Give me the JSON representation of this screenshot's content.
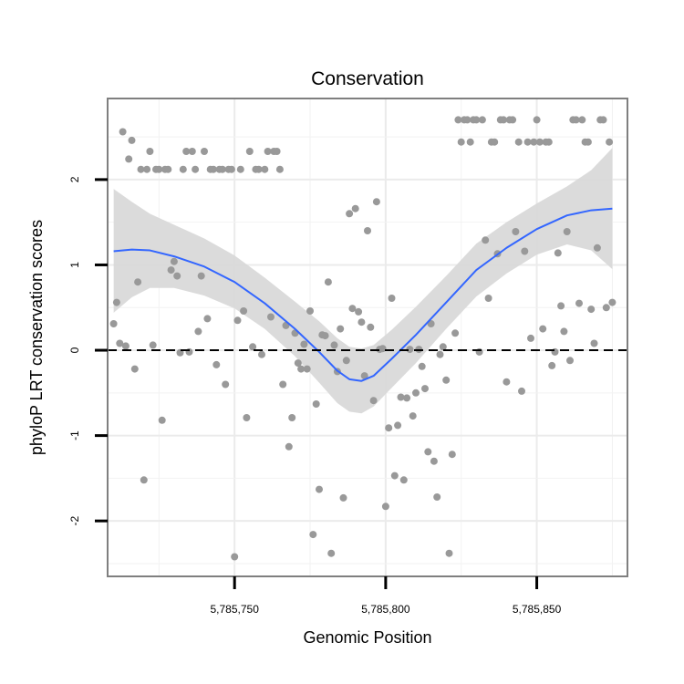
{
  "chart_data": {
    "type": "scatter",
    "title": "Conservation",
    "xlabel": "Genomic Position",
    "ylabel": "phyloP LRT conservation scores",
    "xlim": [
      5785708,
      5785880
    ],
    "ylim": [
      -2.65,
      2.95
    ],
    "x_ticks": [
      {
        "value": 5785750,
        "label": "5,785,750"
      },
      {
        "value": 5785800,
        "label": "5,785,800"
      },
      {
        "value": 5785850,
        "label": "5,785,850"
      }
    ],
    "y_ticks": [
      {
        "value": 2,
        "label": "2"
      },
      {
        "value": 1,
        "label": "1"
      },
      {
        "value": 0,
        "label": "0"
      },
      {
        "value": -1,
        "label": "-1"
      },
      {
        "value": -2,
        "label": "-2"
      }
    ],
    "reference_line": {
      "y": 0,
      "style": "dashed"
    },
    "grid": true,
    "point_color": "#999999",
    "smooth_color": "#3366ff",
    "ribbon_color": "#d9d9d9",
    "points": [
      [
        5785710,
        0.31
      ],
      [
        5785711,
        0.56
      ],
      [
        5785712,
        0.08
      ],
      [
        5785713,
        2.56
      ],
      [
        5785714,
        0.05
      ],
      [
        5785715,
        2.24
      ],
      [
        5785716,
        2.46
      ],
      [
        5785717,
        -0.22
      ],
      [
        5785718,
        0.8
      ],
      [
        5785719,
        2.12
      ],
      [
        5785720,
        -1.52
      ],
      [
        5785721,
        2.12
      ],
      [
        5785722,
        2.33
      ],
      [
        5785723,
        0.06
      ],
      [
        5785724,
        2.12
      ],
      [
        5785725,
        2.12
      ],
      [
        5785726,
        -0.82
      ],
      [
        5785727,
        2.12
      ],
      [
        5785728,
        2.12
      ],
      [
        5785729,
        0.94
      ],
      [
        5785730,
        1.04
      ],
      [
        5785731,
        0.87
      ],
      [
        5785732,
        -0.03
      ],
      [
        5785733,
        2.12
      ],
      [
        5785734,
        2.33
      ],
      [
        5785735,
        -0.02
      ],
      [
        5785736,
        2.33
      ],
      [
        5785737,
        2.12
      ],
      [
        5785738,
        0.22
      ],
      [
        5785739,
        0.87
      ],
      [
        5785740,
        2.33
      ],
      [
        5785741,
        0.37
      ],
      [
        5785742,
        2.12
      ],
      [
        5785743,
        2.12
      ],
      [
        5785744,
        -0.17
      ],
      [
        5785745,
        2.12
      ],
      [
        5785746,
        2.12
      ],
      [
        5785747,
        -0.4
      ],
      [
        5785748,
        2.12
      ],
      [
        5785749,
        2.12
      ],
      [
        5785750,
        -2.42
      ],
      [
        5785751,
        0.35
      ],
      [
        5785752,
        2.12
      ],
      [
        5785753,
        0.46
      ],
      [
        5785754,
        -0.79
      ],
      [
        5785755,
        2.33
      ],
      [
        5785756,
        0.04
      ],
      [
        5785757,
        2.12
      ],
      [
        5785758,
        2.12
      ],
      [
        5785759,
        -0.05
      ],
      [
        5785760,
        2.12
      ],
      [
        5785761,
        2.33
      ],
      [
        5785762,
        0.39
      ],
      [
        5785763,
        2.33
      ],
      [
        5785764,
        2.33
      ],
      [
        5785765,
        2.12
      ],
      [
        5785766,
        -0.4
      ],
      [
        5785767,
        0.29
      ],
      [
        5785768,
        -1.13
      ],
      [
        5785769,
        -0.79
      ],
      [
        5785770,
        0.2
      ],
      [
        5785771,
        -0.15
      ],
      [
        5785772,
        -0.22
      ],
      [
        5785773,
        0.07
      ],
      [
        5785774,
        -0.22
      ],
      [
        5785775,
        0.46
      ],
      [
        5785776,
        -2.16
      ],
      [
        5785777,
        -0.63
      ],
      [
        5785778,
        -1.63
      ],
      [
        5785779,
        0.18
      ],
      [
        5785780,
        0.17
      ],
      [
        5785781,
        0.8
      ],
      [
        5785782,
        -2.38
      ],
      [
        5785783,
        0.06
      ],
      [
        5785784,
        -0.25
      ],
      [
        5785785,
        0.25
      ],
      [
        5785786,
        -1.73
      ],
      [
        5785787,
        -0.12
      ],
      [
        5785788,
        1.6
      ],
      [
        5785789,
        0.49
      ],
      [
        5785790,
        1.66
      ],
      [
        5785791,
        0.45
      ],
      [
        5785792,
        0.33
      ],
      [
        5785793,
        -0.3
      ],
      [
        5785794,
        1.4
      ],
      [
        5785795,
        0.27
      ],
      [
        5785796,
        -0.59
      ],
      [
        5785797,
        1.74
      ],
      [
        5785798,
        0.01
      ],
      [
        5785799,
        0.02
      ],
      [
        5785800,
        -1.83
      ],
      [
        5785801,
        -0.91
      ],
      [
        5785802,
        0.61
      ],
      [
        5785803,
        -1.47
      ],
      [
        5785804,
        -0.88
      ],
      [
        5785805,
        -0.55
      ],
      [
        5785806,
        -1.52
      ],
      [
        5785807,
        -0.56
      ],
      [
        5785808,
        0.01
      ],
      [
        5785809,
        -0.77
      ],
      [
        5785810,
        -0.5
      ],
      [
        5785811,
        0.01
      ],
      [
        5785812,
        -0.19
      ],
      [
        5785813,
        -0.45
      ],
      [
        5785814,
        -1.19
      ],
      [
        5785815,
        0.31
      ],
      [
        5785816,
        -1.3
      ],
      [
        5785817,
        -1.72
      ],
      [
        5785818,
        -0.05
      ],
      [
        5785819,
        0.04
      ],
      [
        5785820,
        -0.35
      ],
      [
        5785821,
        -2.38
      ],
      [
        5785822,
        -1.22
      ],
      [
        5785823,
        0.2
      ],
      [
        5785824,
        2.7
      ],
      [
        5785825,
        2.44
      ],
      [
        5785826,
        2.7
      ],
      [
        5785827,
        2.7
      ],
      [
        5785828,
        2.44
      ],
      [
        5785829,
        2.7
      ],
      [
        5785830,
        2.7
      ],
      [
        5785831,
        -0.02
      ],
      [
        5785832,
        2.7
      ],
      [
        5785833,
        1.29
      ],
      [
        5785834,
        0.61
      ],
      [
        5785835,
        2.44
      ],
      [
        5785836,
        2.44
      ],
      [
        5785837,
        1.13
      ],
      [
        5785838,
        2.7
      ],
      [
        5785839,
        2.7
      ],
      [
        5785840,
        -0.37
      ],
      [
        5785841,
        2.7
      ],
      [
        5785842,
        2.7
      ],
      [
        5785843,
        1.39
      ],
      [
        5785844,
        2.44
      ],
      [
        5785845,
        -0.48
      ],
      [
        5785846,
        1.16
      ],
      [
        5785847,
        2.44
      ],
      [
        5785848,
        0.14
      ],
      [
        5785849,
        2.44
      ],
      [
        5785850,
        2.7
      ],
      [
        5785851,
        2.44
      ],
      [
        5785852,
        0.25
      ],
      [
        5785853,
        2.44
      ],
      [
        5785854,
        2.44
      ],
      [
        5785855,
        -0.18
      ],
      [
        5785856,
        -0.02
      ],
      [
        5785857,
        1.14
      ],
      [
        5785858,
        0.52
      ],
      [
        5785859,
        0.22
      ],
      [
        5785860,
        1.39
      ],
      [
        5785861,
        -0.12
      ],
      [
        5785862,
        2.7
      ],
      [
        5785863,
        2.7
      ],
      [
        5785864,
        0.55
      ],
      [
        5785865,
        2.7
      ],
      [
        5785866,
        2.44
      ],
      [
        5785867,
        2.44
      ],
      [
        5785868,
        0.48
      ],
      [
        5785869,
        0.08
      ],
      [
        5785870,
        1.2
      ],
      [
        5785871,
        2.7
      ],
      [
        5785872,
        2.7
      ],
      [
        5785873,
        0.5
      ],
      [
        5785874,
        2.44
      ],
      [
        5785875,
        0.56
      ]
    ],
    "smooth": [
      {
        "x": 5785710,
        "y": 1.16,
        "lo": 0.44,
        "hi": 1.89
      },
      {
        "x": 5785716,
        "y": 1.18,
        "lo": 0.62,
        "hi": 1.74
      },
      {
        "x": 5785722,
        "y": 1.17,
        "lo": 0.73,
        "hi": 1.6
      },
      {
        "x": 5785730,
        "y": 1.1,
        "lo": 0.73,
        "hi": 1.47
      },
      {
        "x": 5785740,
        "y": 0.98,
        "lo": 0.64,
        "hi": 1.31
      },
      {
        "x": 5785750,
        "y": 0.8,
        "lo": 0.49,
        "hi": 1.11
      },
      {
        "x": 5785760,
        "y": 0.55,
        "lo": 0.25,
        "hi": 0.85
      },
      {
        "x": 5785770,
        "y": 0.25,
        "lo": -0.07,
        "hi": 0.57
      },
      {
        "x": 5785778,
        "y": -0.02,
        "lo": -0.38,
        "hi": 0.34
      },
      {
        "x": 5785784,
        "y": -0.24,
        "lo": -0.62,
        "hi": 0.14
      },
      {
        "x": 5785788,
        "y": -0.34,
        "lo": -0.72,
        "hi": 0.04
      },
      {
        "x": 5785792,
        "y": -0.36,
        "lo": -0.74,
        "hi": 0.02
      },
      {
        "x": 5785796,
        "y": -0.3,
        "lo": -0.66,
        "hi": 0.06
      },
      {
        "x": 5785802,
        "y": -0.1,
        "lo": -0.44,
        "hi": 0.24
      },
      {
        "x": 5785810,
        "y": 0.18,
        "lo": -0.15,
        "hi": 0.51
      },
      {
        "x": 5785820,
        "y": 0.56,
        "lo": 0.25,
        "hi": 0.87
      },
      {
        "x": 5785830,
        "y": 0.94,
        "lo": 0.63,
        "hi": 1.25
      },
      {
        "x": 5785840,
        "y": 1.2,
        "lo": 0.9,
        "hi": 1.5
      },
      {
        "x": 5785850,
        "y": 1.42,
        "lo": 1.12,
        "hi": 1.72
      },
      {
        "x": 5785860,
        "y": 1.58,
        "lo": 1.24,
        "hi": 1.92
      },
      {
        "x": 5785868,
        "y": 1.64,
        "lo": 1.17,
        "hi": 2.11
      },
      {
        "x": 5785875,
        "y": 1.66,
        "lo": 0.95,
        "hi": 2.37
      }
    ]
  }
}
